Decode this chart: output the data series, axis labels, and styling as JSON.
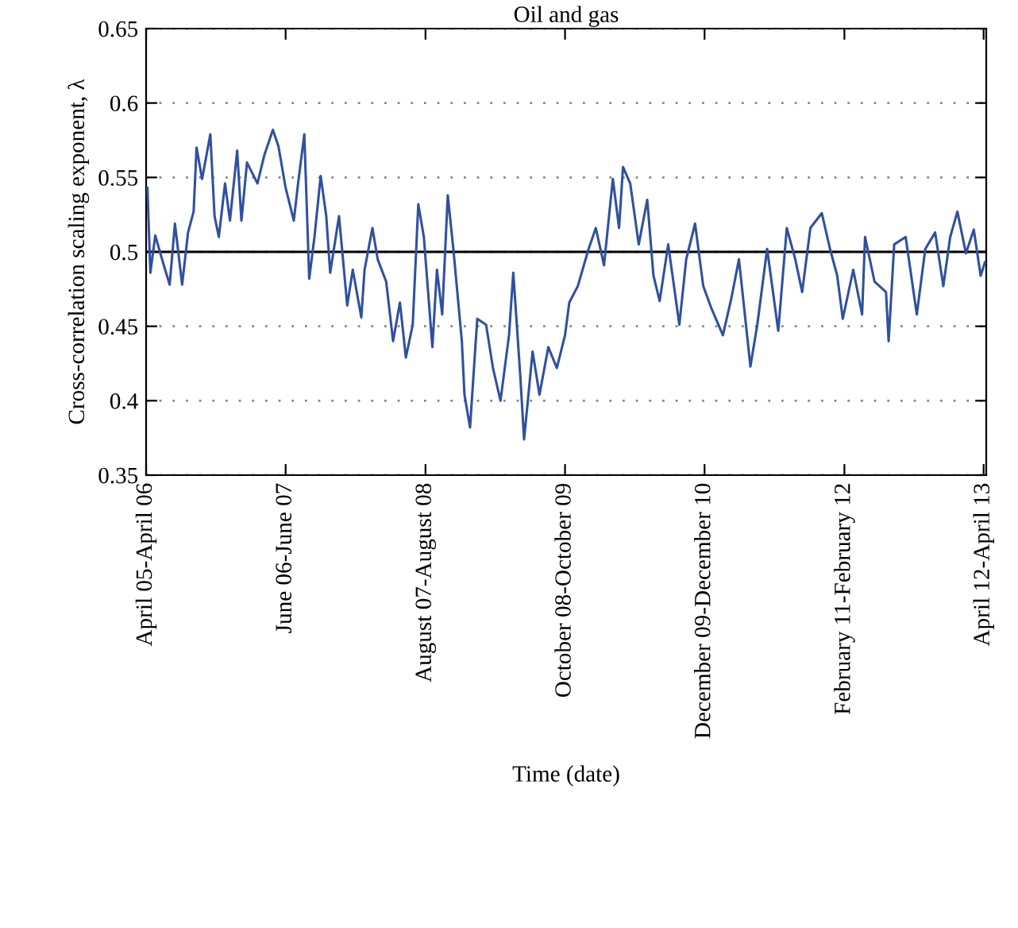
{
  "chart_data": {
    "type": "line",
    "title": "Oil and gas",
    "xlabel": "Time (date)",
    "ylabel": "Cross-correlation scaling exponent, λ",
    "xlim": [
      "2006-04-01",
      "2013-04-09"
    ],
    "xticks": [
      {
        "value": "2006-04-01",
        "label": "April 05-April 06"
      },
      {
        "value": "2007-06-01",
        "label": "June 06-June 07"
      },
      {
        "value": "2008-08-01",
        "label": "August 07-August 08"
      },
      {
        "value": "2009-10-01",
        "label": "October 08-October 09"
      },
      {
        "value": "2010-12-01",
        "label": "December 09-December 10"
      },
      {
        "value": "2012-02-01",
        "label": "February 11-February 12"
      },
      {
        "value": "2013-04-01",
        "label": "April 12-April 13"
      }
    ],
    "ylim": [
      0.35,
      0.65
    ],
    "yticks": [
      0.35,
      0.4,
      0.45,
      0.5,
      0.55,
      0.6,
      0.65
    ],
    "grid": "y",
    "ref_lines": [
      {
        "axis": "y",
        "value": 0.5,
        "color": "#000000",
        "line_style": "solid"
      }
    ],
    "series": [
      {
        "color": "#3050a0",
        "x": [
          "2006-04-05",
          "2006-04-14",
          "2006-04-29",
          "2006-05-25",
          "2006-06-12",
          "2006-06-28",
          "2006-07-20",
          "2006-08-07",
          "2006-08-24",
          "2006-09-02",
          "2006-09-19",
          "2006-10-14",
          "2006-10-27",
          "2006-11-09",
          "2006-11-28",
          "2006-12-13",
          "2007-01-04",
          "2007-01-17",
          "2007-02-03",
          "2007-03-07",
          "2007-03-28",
          "2007-04-23",
          "2007-05-10",
          "2007-06-01",
          "2007-06-26",
          "2007-07-09",
          "2007-07-28",
          "2007-08-12",
          "2007-08-28",
          "2007-09-16",
          "2007-10-03",
          "2007-10-15",
          "2007-11-11",
          "2007-12-06",
          "2007-12-23",
          "2008-01-18",
          "2008-01-28",
          "2008-02-21",
          "2008-03-08",
          "2008-04-03",
          "2008-04-24",
          "2008-05-15",
          "2008-06-02",
          "2008-06-23",
          "2008-07-10",
          "2008-07-27",
          "2008-08-22",
          "2008-09-05",
          "2008-09-21",
          "2008-10-08",
          "2008-10-25",
          "2008-11-20",
          "2008-11-28",
          "2008-12-15",
          "2009-01-06",
          "2009-02-02",
          "2009-02-23",
          "2009-03-18",
          "2009-04-13",
          "2009-04-26",
          "2009-05-17",
          "2009-05-29",
          "2009-06-24",
          "2009-07-15",
          "2009-08-11",
          "2009-09-06",
          "2009-10-01",
          "2009-10-14",
          "2009-11-09",
          "2009-12-12",
          "2010-01-03",
          "2010-01-28",
          "2010-02-24",
          "2010-03-15",
          "2010-03-27",
          "2010-04-18",
          "2010-05-14",
          "2010-06-09",
          "2010-06-28",
          "2010-07-17",
          "2010-08-12",
          "2010-09-15",
          "2010-10-06",
          "2010-11-02",
          "2010-11-27",
          "2010-12-22",
          "2011-01-26",
          "2011-02-21",
          "2011-03-16",
          "2011-04-20",
          "2011-05-11",
          "2011-06-10",
          "2011-07-14",
          "2011-08-09",
          "2011-09-04",
          "2011-09-25",
          "2011-10-20",
          "2011-11-24",
          "2011-12-19",
          "2012-01-10",
          "2012-01-27",
          "2012-02-28",
          "2012-03-26",
          "2012-04-04",
          "2012-05-03",
          "2012-06-07",
          "2012-06-15",
          "2012-07-02",
          "2012-08-06",
          "2012-09-09",
          "2012-10-05",
          "2012-11-04",
          "2012-11-29",
          "2012-12-20",
          "2013-01-11",
          "2013-02-06",
          "2013-03-02",
          "2013-03-23",
          "2013-04-05"
        ],
        "values": [
          0.543,
          0.486,
          0.511,
          0.491,
          0.478,
          0.519,
          0.478,
          0.513,
          0.527,
          0.57,
          0.549,
          0.579,
          0.524,
          0.51,
          0.546,
          0.521,
          0.568,
          0.521,
          0.56,
          0.546,
          0.565,
          0.582,
          0.571,
          0.543,
          0.521,
          0.546,
          0.579,
          0.482,
          0.51,
          0.551,
          0.524,
          0.486,
          0.524,
          0.464,
          0.488,
          0.456,
          0.488,
          0.516,
          0.495,
          0.48,
          0.44,
          0.466,
          0.429,
          0.451,
          0.532,
          0.51,
          0.436,
          0.488,
          0.458,
          0.538,
          0.502,
          0.44,
          0.404,
          0.382,
          0.455,
          0.451,
          0.422,
          0.4,
          0.444,
          0.486,
          0.418,
          0.374,
          0.433,
          0.404,
          0.436,
          0.422,
          0.444,
          0.466,
          0.477,
          0.502,
          0.516,
          0.491,
          0.549,
          0.516,
          0.557,
          0.546,
          0.505,
          0.535,
          0.484,
          0.467,
          0.505,
          0.451,
          0.495,
          0.519,
          0.477,
          0.462,
          0.444,
          0.469,
          0.495,
          0.423,
          0.451,
          0.502,
          0.447,
          0.516,
          0.495,
          0.473,
          0.516,
          0.526,
          0.502,
          0.484,
          0.455,
          0.488,
          0.458,
          0.51,
          0.48,
          0.473,
          0.44,
          0.505,
          0.51,
          0.458,
          0.502,
          0.513,
          0.477,
          0.51,
          0.527,
          0.499,
          0.515,
          0.484,
          0.493
        ]
      }
    ]
  }
}
